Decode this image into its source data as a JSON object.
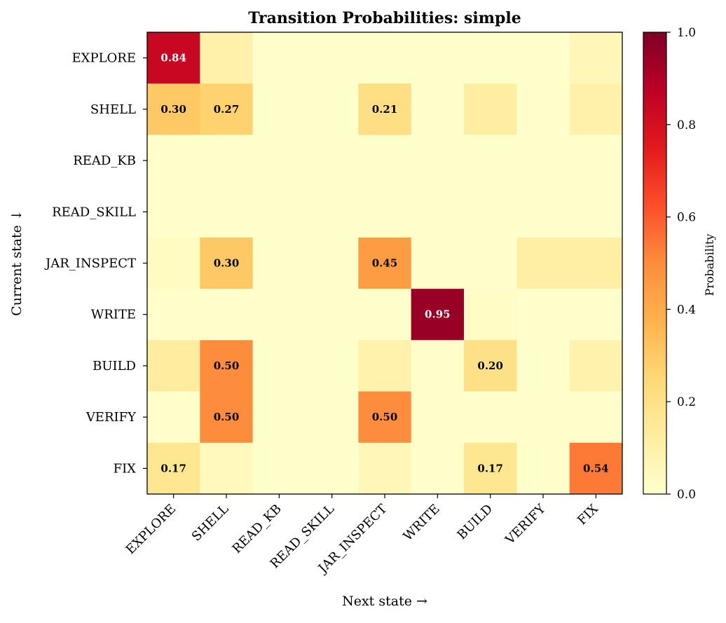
{
  "chart_data": {
    "type": "heatmap",
    "title": "Transition Probabilities: simple",
    "xlabel": "Next state →",
    "ylabel": "Current state ↓",
    "x_categories": [
      "EXPLORE",
      "SHELL",
      "READ_KB",
      "READ_SKILL",
      "JAR_INSPECT",
      "WRITE",
      "BUILD",
      "VERIFY",
      "FIX"
    ],
    "y_categories": [
      "EXPLORE",
      "SHELL",
      "READ_KB",
      "READ_SKILL",
      "JAR_INSPECT",
      "WRITE",
      "BUILD",
      "VERIFY",
      "FIX"
    ],
    "values": [
      [
        0.84,
        0.1,
        0.0,
        0.0,
        0.0,
        0.0,
        0.0,
        0.0,
        0.06
      ],
      [
        0.3,
        0.27,
        0.0,
        0.0,
        0.21,
        0.0,
        0.12,
        0.0,
        0.1
      ],
      [
        0.0,
        0.0,
        0.0,
        0.0,
        0.0,
        0.0,
        0.0,
        0.0,
        0.0
      ],
      [
        0.0,
        0.0,
        0.0,
        0.0,
        0.0,
        0.0,
        0.0,
        0.0,
        0.0
      ],
      [
        0.03,
        0.3,
        0.0,
        0.0,
        0.45,
        0.0,
        0.0,
        0.11,
        0.11
      ],
      [
        0.0,
        0.0,
        0.0,
        0.0,
        0.0,
        0.95,
        0.02,
        0.0,
        0.0
      ],
      [
        0.13,
        0.5,
        0.0,
        0.0,
        0.09,
        0.0,
        0.2,
        0.0,
        0.09
      ],
      [
        0.0,
        0.5,
        0.0,
        0.0,
        0.5,
        0.0,
        0.0,
        0.0,
        0.0
      ],
      [
        0.17,
        0.04,
        0.0,
        0.0,
        0.06,
        0.0,
        0.17,
        0.0,
        0.54
      ]
    ],
    "annotations": [
      {
        "row": 0,
        "col": 0,
        "text": "0.84"
      },
      {
        "row": 1,
        "col": 0,
        "text": "0.30"
      },
      {
        "row": 1,
        "col": 1,
        "text": "0.27"
      },
      {
        "row": 1,
        "col": 4,
        "text": "0.21"
      },
      {
        "row": 4,
        "col": 1,
        "text": "0.30"
      },
      {
        "row": 4,
        "col": 4,
        "text": "0.45"
      },
      {
        "row": 5,
        "col": 5,
        "text": "0.95"
      },
      {
        "row": 6,
        "col": 1,
        "text": "0.50"
      },
      {
        "row": 6,
        "col": 6,
        "text": "0.20"
      },
      {
        "row": 7,
        "col": 1,
        "text": "0.50"
      },
      {
        "row": 7,
        "col": 4,
        "text": "0.50"
      },
      {
        "row": 8,
        "col": 0,
        "text": "0.17"
      },
      {
        "row": 8,
        "col": 6,
        "text": "0.17"
      },
      {
        "row": 8,
        "col": 8,
        "text": "0.54"
      }
    ],
    "colormap": "YlOrRd",
    "colorbar": {
      "label": "Probability",
      "range": [
        0,
        1
      ],
      "ticks": [
        "0.0",
        "0.2",
        "0.4",
        "0.6",
        "0.8",
        "1.0"
      ]
    },
    "grid": false
  }
}
